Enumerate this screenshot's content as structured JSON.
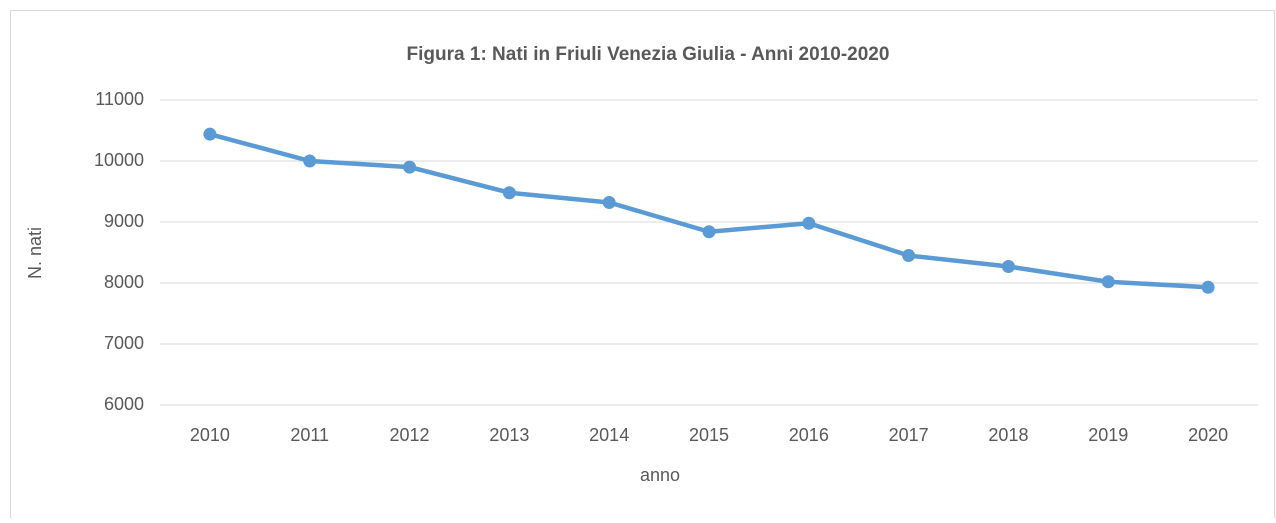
{
  "chart_data": {
    "type": "line",
    "title": "Figura 1: Nati in Friuli Venezia Giulia -  Anni 2010-2020",
    "x_label": "anno",
    "y_label": "N. nati",
    "categories": [
      "2010",
      "2011",
      "2012",
      "2013",
      "2014",
      "2015",
      "2016",
      "2017",
      "2018",
      "2019",
      "2020"
    ],
    "series": [
      {
        "name": "Nati",
        "color": "#5b9bd5",
        "values": [
          10440,
          10000,
          9900,
          9480,
          9320,
          8840,
          8980,
          8450,
          8270,
          8020,
          7930
        ]
      }
    ],
    "ylim": [
      6000,
      11000
    ],
    "yticks": [
      6000,
      7000,
      8000,
      9000,
      10000,
      11000
    ],
    "grid": true
  }
}
